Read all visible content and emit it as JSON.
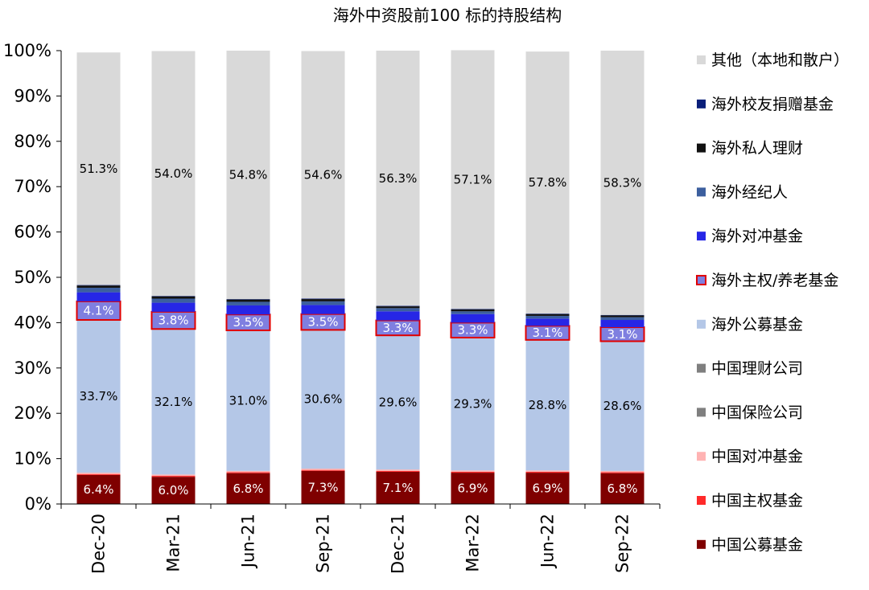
{
  "chart_data": {
    "type": "bar",
    "stacked": true,
    "title": "海外中资股前100 标的持股结构",
    "categories": [
      "Dec-20",
      "Mar-21",
      "Jun-21",
      "Sep-21",
      "Dec-21",
      "Mar-22",
      "Jun-22",
      "Sep-22"
    ],
    "ylim": [
      0,
      100
    ],
    "yticks": [
      "0%",
      "10%",
      "20%",
      "30%",
      "40%",
      "50%",
      "60%",
      "70%",
      "80%",
      "90%",
      "100%"
    ],
    "legend_position": "right",
    "series": [
      {
        "name": "中国公募基金",
        "color": "#7f0000",
        "values": [
          6.4,
          6.0,
          6.8,
          7.3,
          7.1,
          6.9,
          6.9,
          6.8
        ],
        "labels": [
          "6.4%",
          "6.0%",
          "6.8%",
          "7.3%",
          "7.1%",
          "6.9%",
          "6.9%",
          "6.8%"
        ],
        "label_style": "light"
      },
      {
        "name": "中国主权基金",
        "color": "#ff2a2a",
        "values": [
          0.2,
          0.2,
          0.2,
          0.2,
          0.2,
          0.2,
          0.2,
          0.2
        ]
      },
      {
        "name": "中国对冲基金",
        "color": "#ffb3b3",
        "values": [
          0.3,
          0.3,
          0.3,
          0.3,
          0.3,
          0.3,
          0.3,
          0.3
        ]
      },
      {
        "name": "中国保险公司",
        "color": "#7f7f7f",
        "values": [
          0.0,
          0.0,
          0.0,
          0.0,
          0.0,
          0.0,
          0.0,
          0.0
        ]
      },
      {
        "name": "中国理财公司",
        "color": "#7f7f7f",
        "values": [
          0.0,
          0.0,
          0.0,
          0.0,
          0.0,
          0.0,
          0.0,
          0.0
        ]
      },
      {
        "name": "海外公募基金",
        "color": "#b4c7e7",
        "values": [
          33.7,
          32.1,
          31.0,
          30.6,
          29.6,
          29.3,
          28.8,
          28.6
        ],
        "labels": [
          "33.7%",
          "32.1%",
          "31.0%",
          "30.6%",
          "29.6%",
          "29.3%",
          "28.8%",
          "28.6%"
        ],
        "label_style": "dark"
      },
      {
        "name": "海外主权/养老基金",
        "color": "#7f7fe0",
        "border": "#e00000",
        "values": [
          4.1,
          3.8,
          3.5,
          3.5,
          3.3,
          3.3,
          3.1,
          3.1
        ],
        "labels": [
          "4.1%",
          "3.8%",
          "3.5%",
          "3.5%",
          "3.3%",
          "3.3%",
          "3.1%",
          "3.1%"
        ],
        "label_style": "light"
      },
      {
        "name": "海外对冲基金",
        "color": "#2626e6",
        "values": [
          2.0,
          2.0,
          2.0,
          2.0,
          2.0,
          1.9,
          1.6,
          1.6
        ]
      },
      {
        "name": "海外经纪人",
        "color": "#3c5f9e",
        "values": [
          1.0,
          0.9,
          0.8,
          0.8,
          0.7,
          0.6,
          0.6,
          0.6
        ]
      },
      {
        "name": "海外私人理财",
        "color": "#111111",
        "values": [
          0.5,
          0.5,
          0.5,
          0.5,
          0.4,
          0.4,
          0.4,
          0.4
        ]
      },
      {
        "name": "海外校友捐赠基金",
        "color": "#0a1f7a",
        "values": [
          0.1,
          0.1,
          0.1,
          0.1,
          0.1,
          0.1,
          0.1,
          0.1
        ]
      },
      {
        "name": "其他（本地和散户）",
        "color": "#d9d9d9",
        "values": [
          51.3,
          54.0,
          54.8,
          54.6,
          56.3,
          57.1,
          57.8,
          58.3
        ],
        "labels": [
          "51.3%",
          "54.0%",
          "54.8%",
          "54.6%",
          "56.3%",
          "57.1%",
          "57.8%",
          "58.3%"
        ],
        "label_style": "dark"
      }
    ],
    "legend_order": [
      "其他（本地和散户）",
      "海外校友捐赠基金",
      "海外私人理财",
      "海外经纪人",
      "海外对冲基金",
      "海外主权/养老基金",
      "海外公募基金",
      "中国理财公司",
      "中国保险公司",
      "中国对冲基金",
      "中国主权基金",
      "中国公募基金"
    ]
  }
}
